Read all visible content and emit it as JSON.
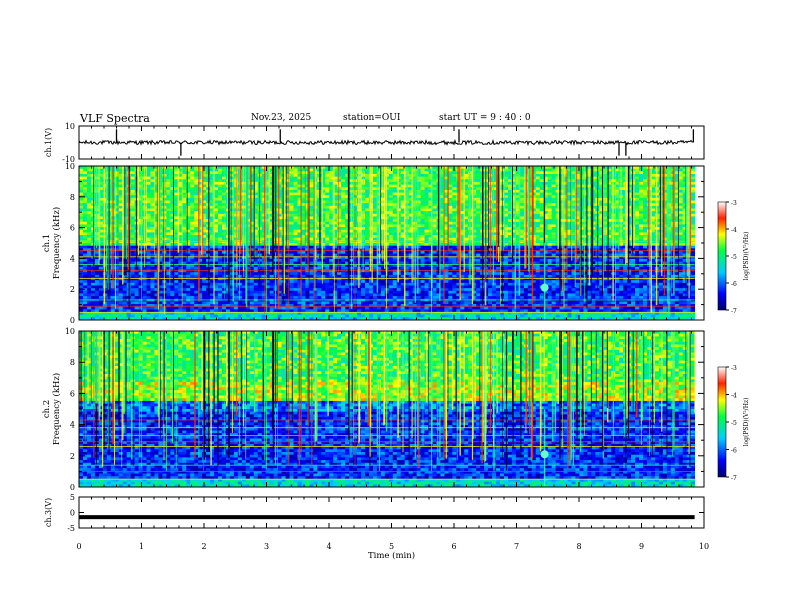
{
  "header": {
    "title": "VLF Spectra",
    "date": "Nov.23, 2025",
    "station": "station=OUI",
    "start_ut": "start  UT =   9 : 40 : 0"
  },
  "chart_data": [
    {
      "type": "line",
      "name": "ch1-waveform",
      "ylabel": "ch.1(V)",
      "ylim": [
        -10,
        10
      ],
      "yticks": [
        "10",
        "-10"
      ],
      "baseline": 0,
      "spikes_min": [
        0.6,
        1.63,
        3.22,
        6.08,
        8.64,
        8.75,
        9.83
      ]
    },
    {
      "type": "heatmap",
      "name": "ch1-spectrogram",
      "ylabel": "ch.1\nFrequency  (kHz)",
      "ylabel_lines": [
        "ch.1",
        "Frequency  (kHz)"
      ],
      "ylim": [
        0,
        10
      ],
      "yticks": [
        "0",
        "2",
        "4",
        "6",
        "8",
        "10"
      ],
      "xlim_min": [
        0,
        9.85
      ],
      "colorbar": {
        "label": "log(PSD)(V²/Hz)",
        "range": [
          -7,
          -3
        ],
        "ticks": [
          "-3",
          "-4",
          "-5",
          "-6",
          "-7"
        ]
      },
      "features": {
        "sferic_band_khz": [
          4.8,
          10
        ],
        "quiet_band_khz": [
          0.5,
          4.8
        ],
        "tone_lines_khz": [
          0.5,
          0.9,
          1.3,
          2.7,
          3.2,
          3.6,
          4.1,
          4.5,
          5.1
        ],
        "burst_at_min": 7.45,
        "burst_khz": 2.1
      }
    },
    {
      "type": "heatmap",
      "name": "ch2-spectrogram",
      "ylabel": "ch.2\nFrequency  (kHz)",
      "ylabel_lines": [
        "ch.2",
        "Frequency  (kHz)"
      ],
      "ylim": [
        0,
        10
      ],
      "yticks": [
        "0",
        "2",
        "4",
        "6",
        "8",
        "10"
      ],
      "xlim_min": [
        0,
        9.85
      ],
      "colorbar": {
        "label": "log(PSD)(V²/Hz)",
        "range": [
          -7,
          -3
        ],
        "ticks": [
          "-3",
          "-4",
          "-5",
          "-6",
          "-7"
        ]
      },
      "features": {
        "sferic_band_khz": [
          5.5,
          10
        ],
        "quiet_band_khz": [
          0.5,
          5.5
        ],
        "tone_lines_khz": [
          0.5,
          1.0,
          1.4,
          2.6,
          2.9,
          3.3,
          3.8,
          4.3
        ],
        "burst_at_min": 7.45,
        "burst_khz": 2.1
      }
    },
    {
      "type": "line",
      "name": "ch3-waveform",
      "ylabel": "ch.3(V)",
      "ylim": [
        -5,
        5
      ],
      "yticks": [
        "5",
        "0",
        "-5"
      ],
      "baseline": -1.5
    }
  ],
  "xaxis": {
    "label": "Time  (min)",
    "ticks": [
      "0",
      "1",
      "2",
      "3",
      "4",
      "5",
      "6",
      "7",
      "8",
      "9",
      "10"
    ],
    "range": [
      0,
      10
    ]
  }
}
